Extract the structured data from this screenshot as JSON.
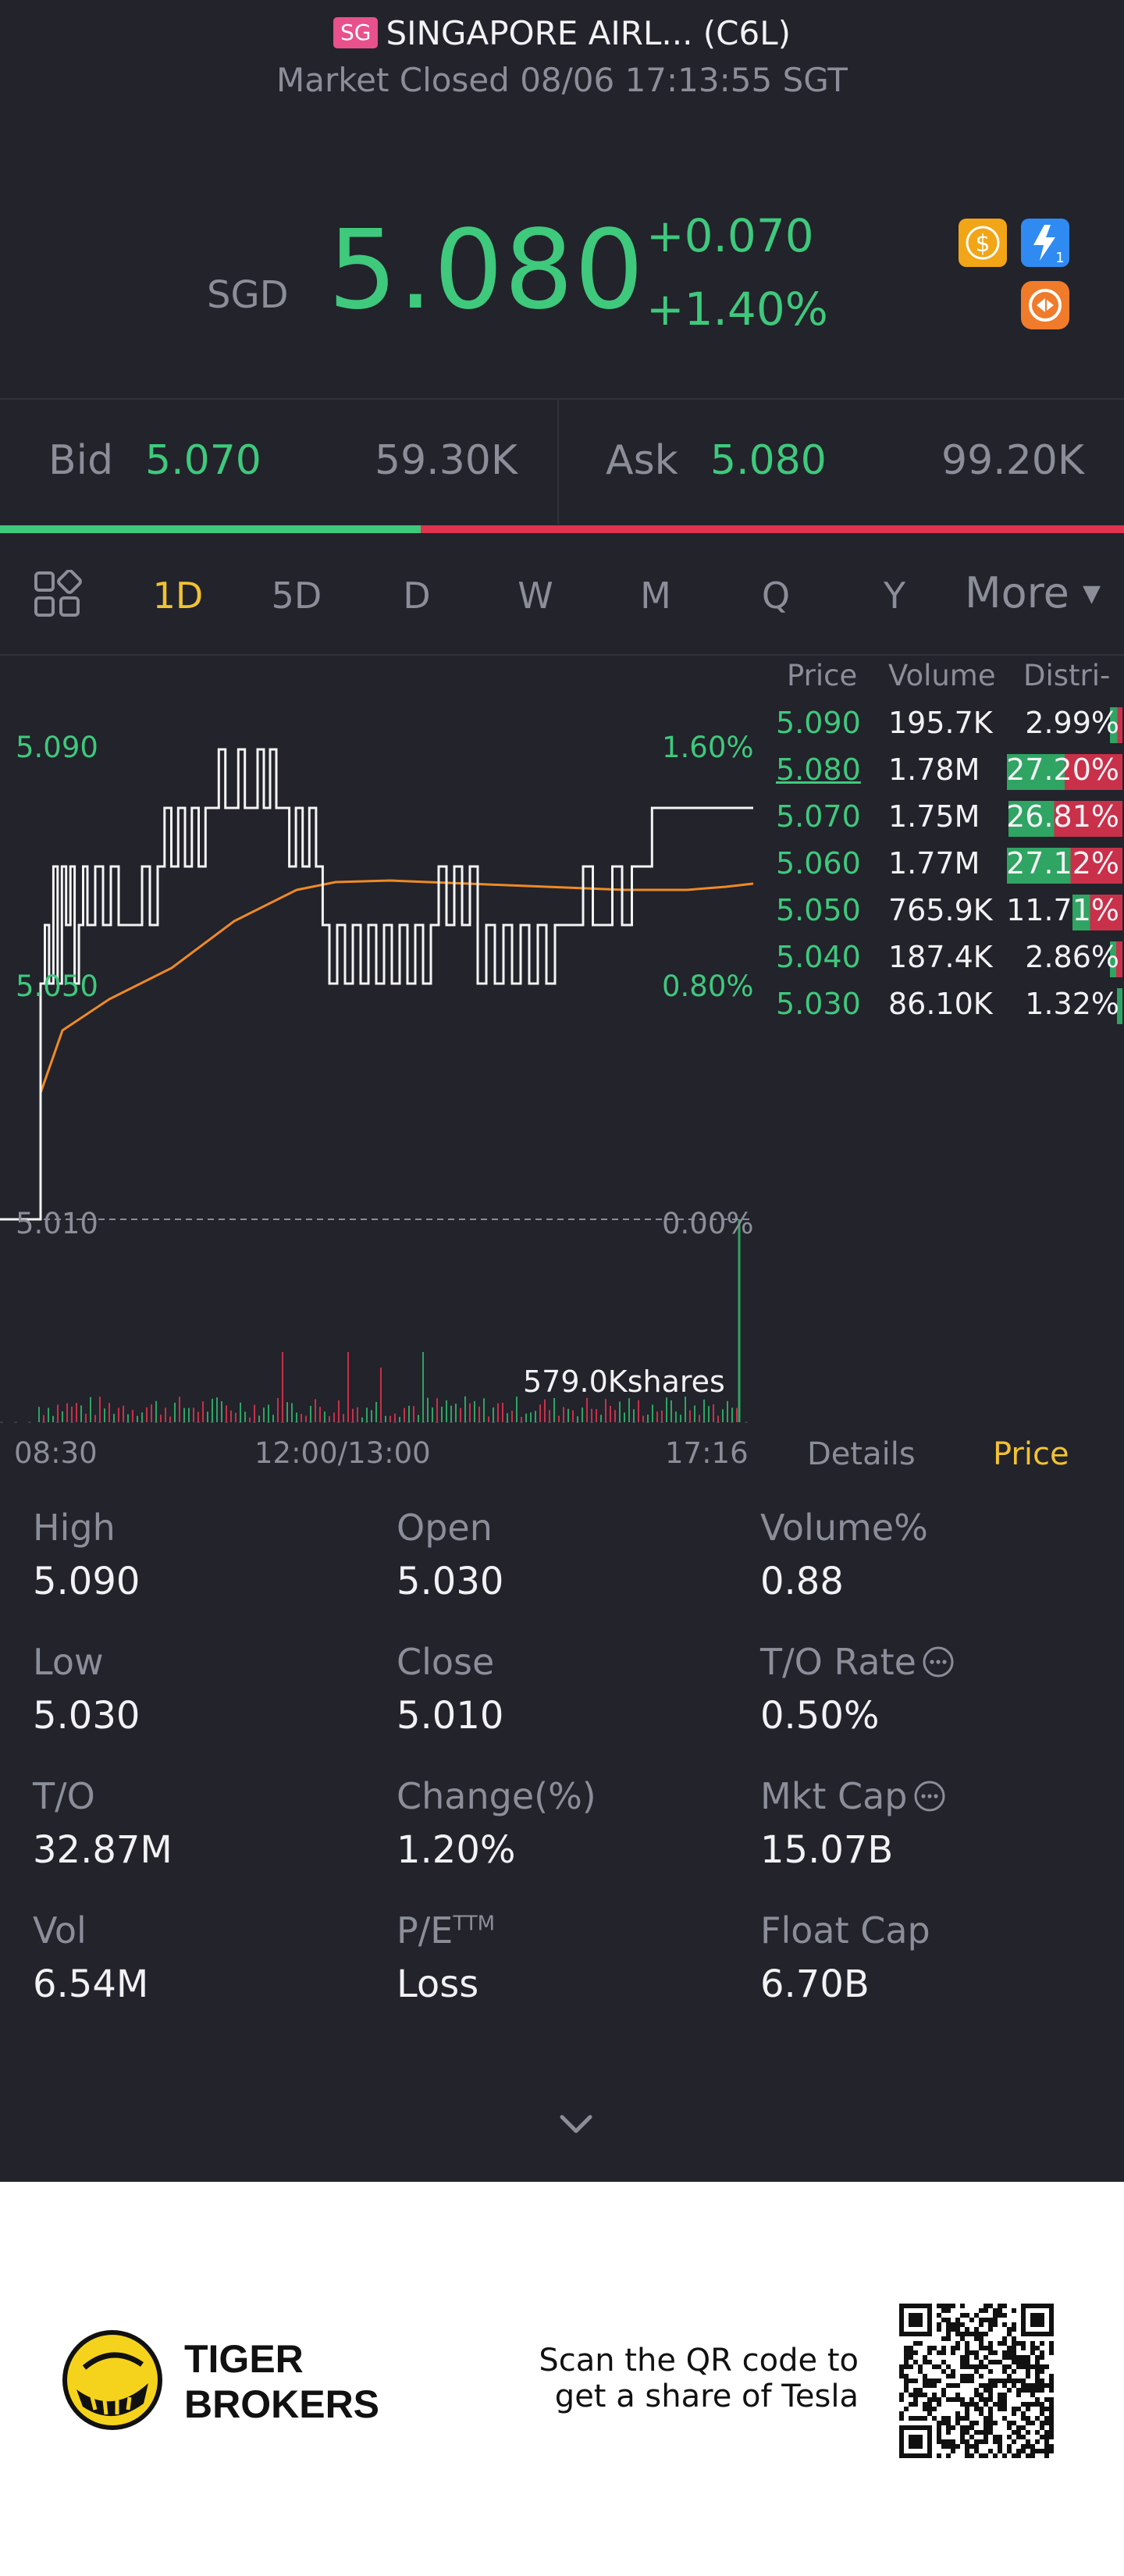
{
  "header": {
    "badge": "SG",
    "title": "SINGAPORE AIRL... (C6L)",
    "status": "Market Closed 08/06 17:13:55 SGT"
  },
  "quote": {
    "currency": "SGD",
    "price": "5.080",
    "change": "+0.070",
    "change_pct": "+1.40%",
    "accent_up": "#3ec97c",
    "accent_down": "#e0334f",
    "icons": [
      "dollar-icon",
      "lightning-icon",
      "swap-icon"
    ]
  },
  "bidask": {
    "bid_label": "Bid",
    "bid_price": "5.070",
    "bid_size": "59.30K",
    "ask_label": "Ask",
    "ask_price": "5.080",
    "ask_size": "99.20K",
    "bid_ratio": 0.374
  },
  "tabs": {
    "items": [
      "1D",
      "5D",
      "D",
      "W",
      "M",
      "Q",
      "Y"
    ],
    "active": "1D",
    "more": "More"
  },
  "chart": {
    "left_high": "5.090",
    "left_mid": "5.050",
    "left_low": "5.010",
    "right_high": "1.60%",
    "right_mid": "0.80%",
    "right_low": "0.00%",
    "volume_label": "579.0Kshares",
    "time_start": "08:30",
    "time_mid": "12:00/13:00",
    "time_end": "17:16"
  },
  "distribution": {
    "headers": [
      "Price",
      "Volume",
      "Distri-"
    ],
    "rows": [
      {
        "price": "5.090",
        "volume": "195.7K",
        "pct": "2.99%",
        "buy": 0.6,
        "sell": 0.4
      },
      {
        "price": "5.080",
        "volume": "1.78M",
        "pct": "27.20%",
        "buy": 0.5,
        "sell": 0.5
      },
      {
        "price": "5.070",
        "volume": "1.75M",
        "pct": "26.81%",
        "buy": 0.4,
        "sell": 0.6
      },
      {
        "price": "5.060",
        "volume": "1.77M",
        "pct": "27.12%",
        "buy": 0.55,
        "sell": 0.45
      },
      {
        "price": "5.050",
        "volume": "765.9K",
        "pct": "11.71%",
        "buy": 0.35,
        "sell": 0.65
      },
      {
        "price": "5.040",
        "volume": "187.4K",
        "pct": "2.86%",
        "buy": 0.5,
        "sell": 0.5
      },
      {
        "price": "5.030",
        "volume": "86.10K",
        "pct": "1.32%",
        "buy": 1.0,
        "sell": 0.0
      }
    ]
  },
  "subtabs": {
    "details": "Details",
    "price": "Price"
  },
  "stats": [
    {
      "label": "High",
      "value": "5.090"
    },
    {
      "label": "Open",
      "value": "5.030"
    },
    {
      "label": "Volume%",
      "value": "0.88"
    },
    {
      "label": "Low",
      "value": "5.030"
    },
    {
      "label": "Close",
      "value": "5.010"
    },
    {
      "label": "T/O Rate",
      "value": "0.50%"
    },
    {
      "label": "T/O",
      "value": "32.87M"
    },
    {
      "label": "Change(%)",
      "value": "1.20%"
    },
    {
      "label": "Mkt Cap",
      "value": "15.07B"
    },
    {
      "label": "Vol",
      "value": "6.54M"
    },
    {
      "label": "P/E",
      "value": "Loss"
    },
    {
      "label": "Float Cap",
      "value": "6.70B"
    }
  ],
  "pe_sup": "TTM",
  "footer": {
    "brand_line1": "TIGER",
    "brand_line2": "BROKERS",
    "promo_line1": "Scan the QR code to",
    "promo_line2": "get a share of Tesla"
  }
}
